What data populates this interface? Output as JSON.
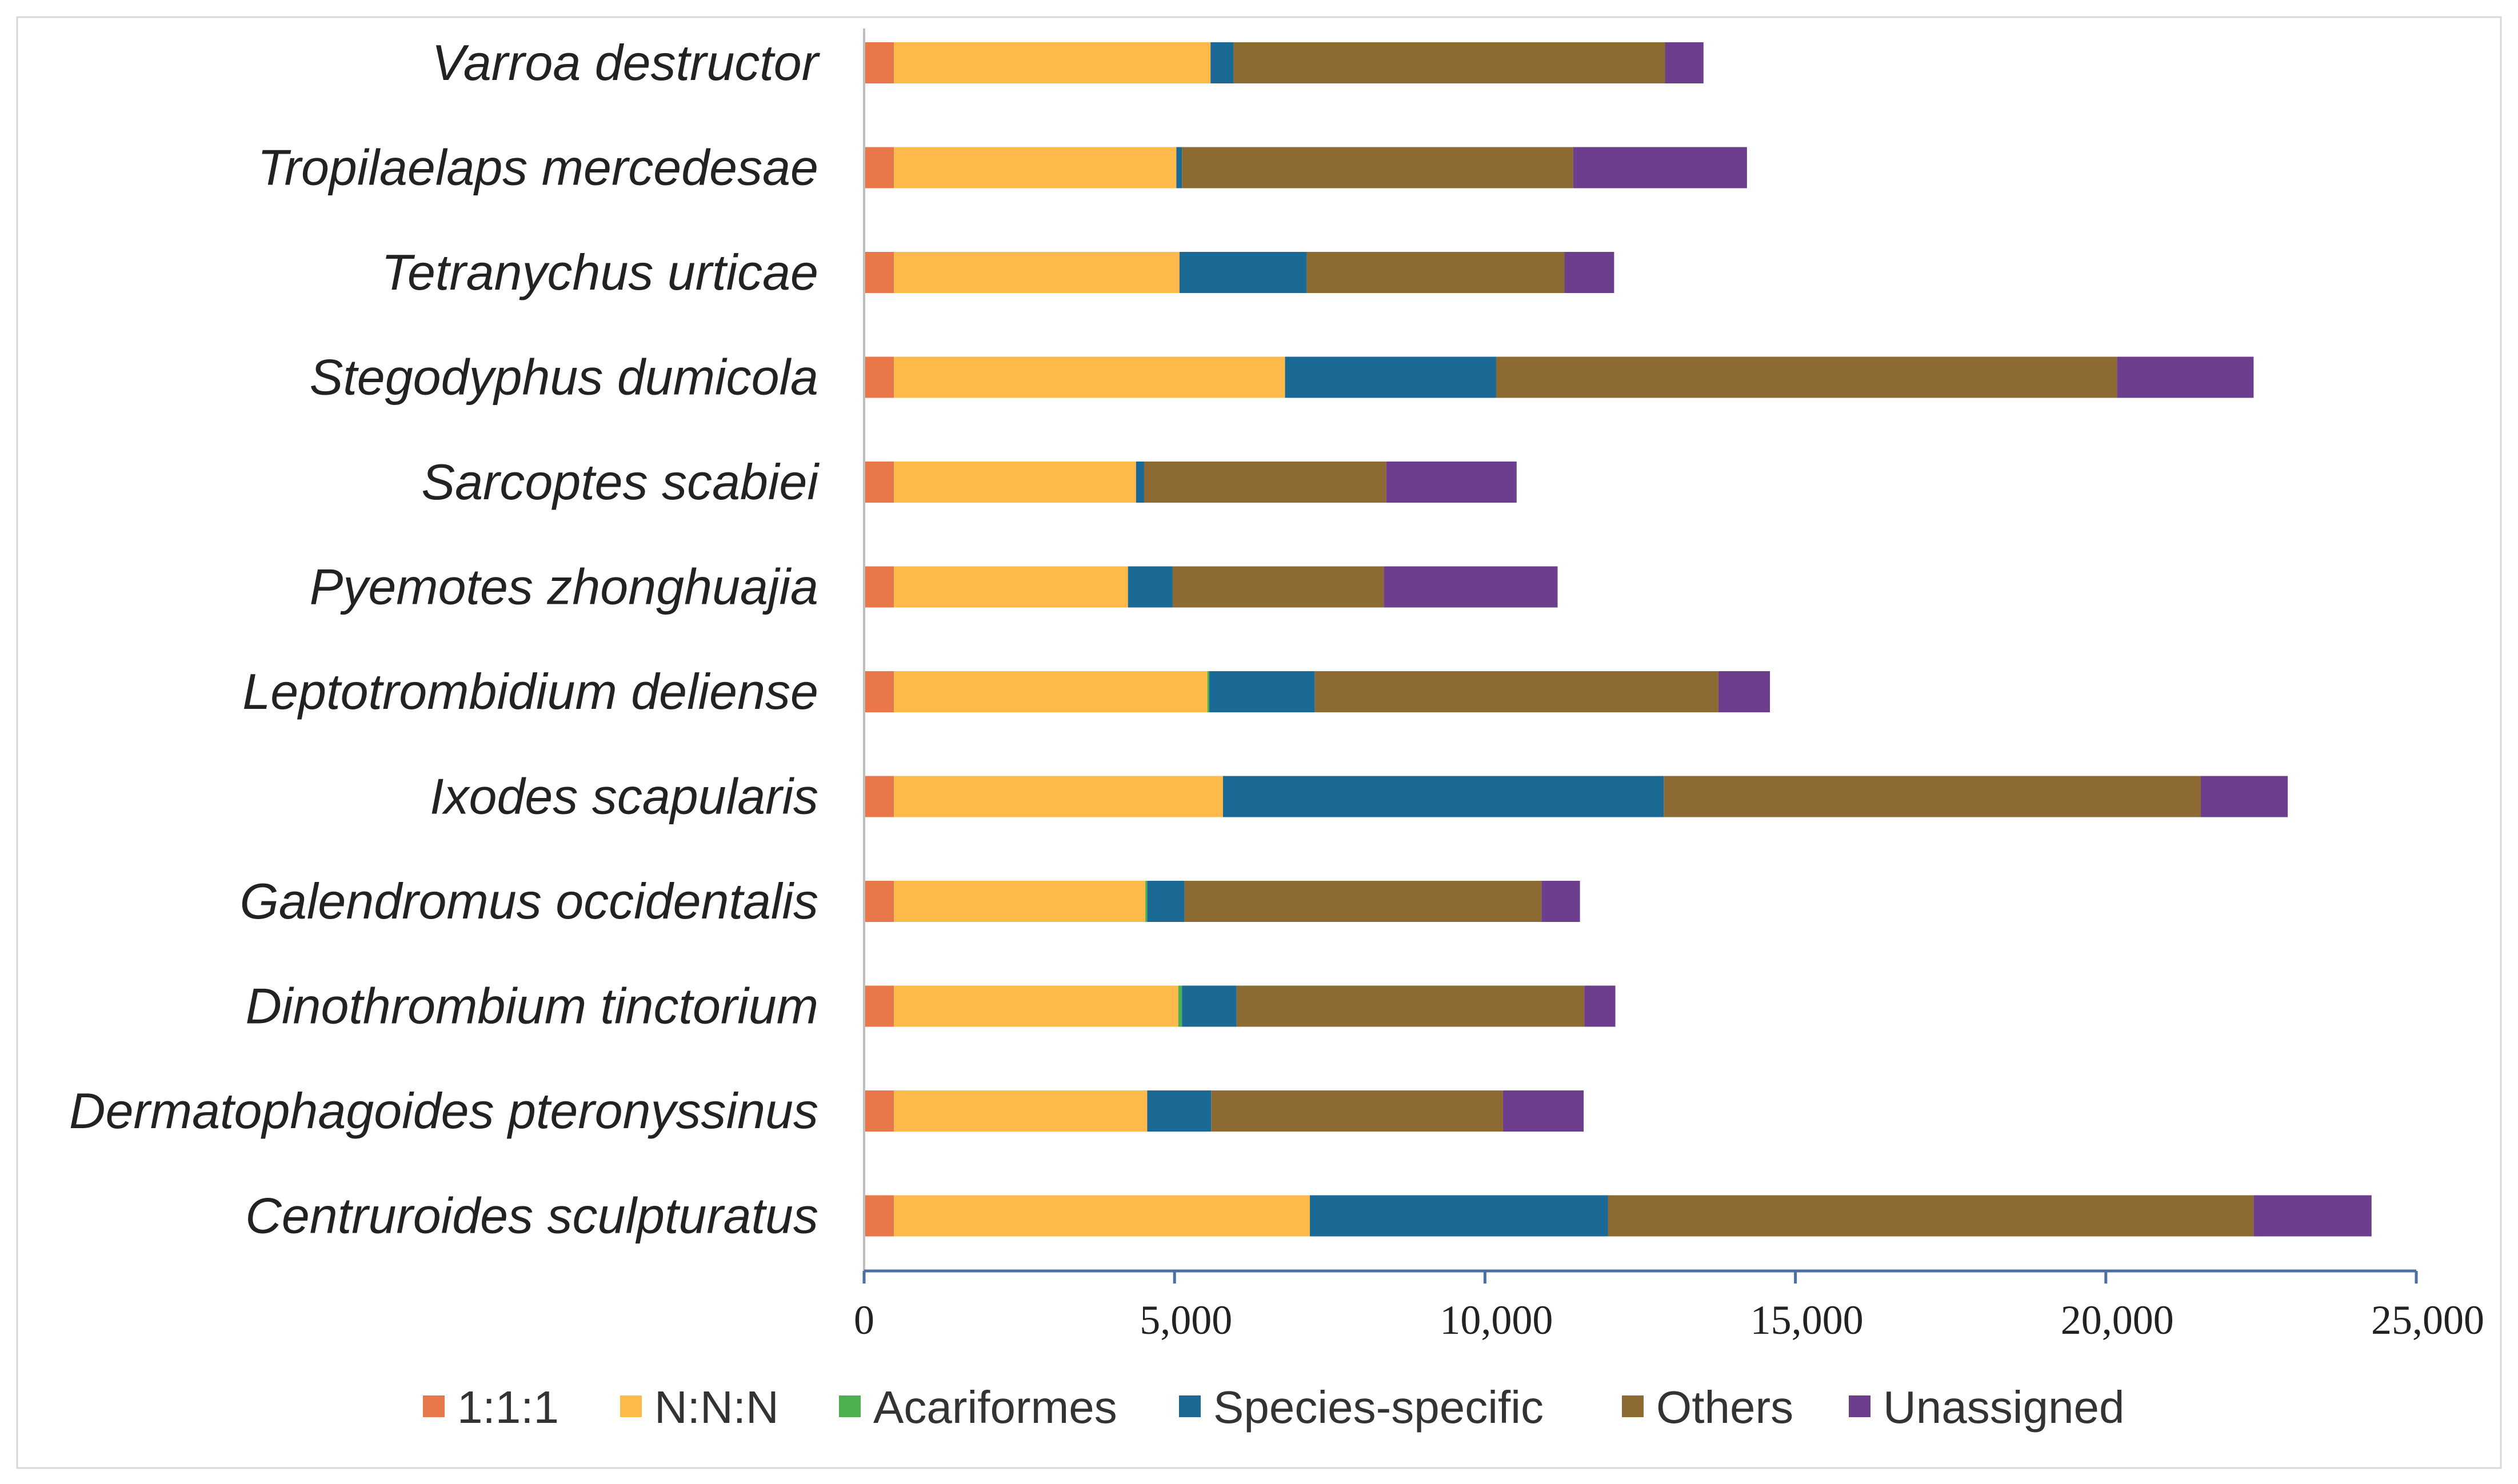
{
  "chart_data": {
    "type": "bar",
    "orientation": "horizontal",
    "stacked": true,
    "title": "",
    "xlabel": "",
    "ylabel": "",
    "xlim": [
      0,
      25000
    ],
    "x_ticks": [
      0,
      5000,
      10000,
      15000,
      20000,
      25000
    ],
    "x_tick_labels": [
      "0",
      "5,000",
      "10,000",
      "15,000",
      "20,000",
      "25,000"
    ],
    "legend_position": "bottom",
    "categories": [
      "Varroa destructor",
      "Tropilaelaps mercedesae",
      "Tetranychus urticae",
      "Stegodyphus dumicola",
      "Sarcoptes scabiei",
      "Pyemotes zhonghuajia",
      "Leptotrombidium deliense",
      "Ixodes scapularis",
      "Galendromus occidentalis",
      "Dinothrombium tinctorium",
      "Dermatophagoides pteronyssinus",
      "Centruroides sculpturatus"
    ],
    "series": [
      {
        "name": "1:1:1",
        "color": "#E8784A",
        "values": [
          480,
          480,
          480,
          480,
          480,
          480,
          480,
          480,
          480,
          480,
          480,
          480
        ]
      },
      {
        "name": "N:N:N",
        "color": "#FDB94A",
        "values": [
          5100,
          4550,
          4600,
          6300,
          3900,
          3770,
          5050,
          5300,
          4050,
          4580,
          4080,
          6700
        ]
      },
      {
        "name": "Acariformes",
        "color": "#4CAF50",
        "values": [
          0,
          0,
          0,
          0,
          0,
          0,
          30,
          0,
          30,
          60,
          0,
          0
        ]
      },
      {
        "name": "Species-specific",
        "color": "#1B6A96",
        "values": [
          370,
          90,
          2050,
          3400,
          130,
          720,
          1700,
          7100,
          600,
          880,
          1030,
          4800
        ]
      },
      {
        "name": "Others",
        "color": "#8C6A32",
        "values": [
          6950,
          6300,
          4150,
          10000,
          3900,
          3400,
          6500,
          8650,
          5750,
          5600,
          4700,
          10400
        ]
      },
      {
        "name": "Unassigned",
        "color": "#6D3D8E",
        "values": [
          620,
          2800,
          800,
          2200,
          2100,
          2800,
          830,
          1400,
          620,
          500,
          1300,
          1900
        ]
      }
    ]
  }
}
